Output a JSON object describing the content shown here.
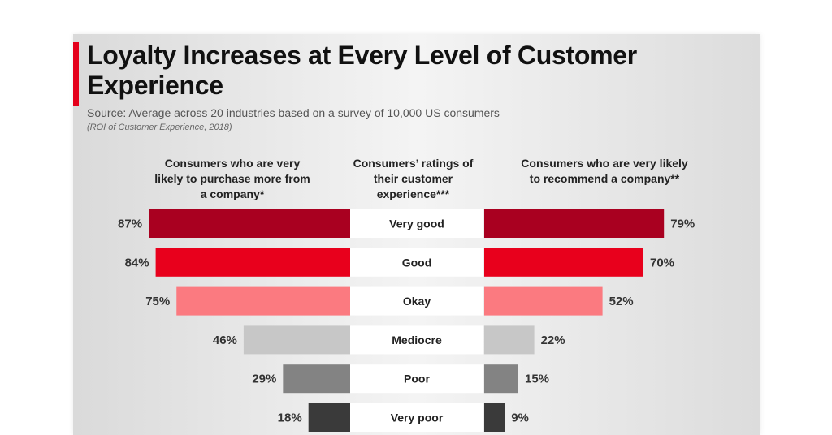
{
  "header": {
    "title": "Loyalty Increases at Every Level of Customer Experience",
    "subtitle": "Source: Average across 20 industries based on a survey of 10,000 US consumers",
    "source_note": "(ROI of Customer Experience, 2018)"
  },
  "columns": {
    "left": "Consumers who are very likely to purchase more from a company*",
    "center": "Consumers’ ratings of their customer experience***",
    "right": "Consumers who are very likely to recommend a company**"
  },
  "colors": {
    "accent": "#e4001b",
    "rows": [
      "#a90020",
      "#e8001c",
      "#fb7a80",
      "#c7c7c7",
      "#838383",
      "#3a3a3a"
    ]
  },
  "chart_data": {
    "type": "bar",
    "layout": "butterfly",
    "categories": [
      "Very good",
      "Good",
      "Okay",
      "Mediocre",
      "Poor",
      "Very poor"
    ],
    "series": [
      {
        "name": "Consumers who are very likely to purchase more from a company*",
        "values": [
          87,
          84,
          75,
          46,
          29,
          18
        ],
        "unit": "%"
      },
      {
        "name": "Consumers who are very likely to recommend a company**",
        "values": [
          79,
          70,
          52,
          22,
          15,
          9
        ],
        "unit": "%"
      }
    ],
    "value_labels_left": [
      "87%",
      "84%",
      "75%",
      "46%",
      "29%",
      "18%"
    ],
    "value_labels_right": [
      "79%",
      "70%",
      "52%",
      "22%",
      "15%",
      "9%"
    ]
  }
}
